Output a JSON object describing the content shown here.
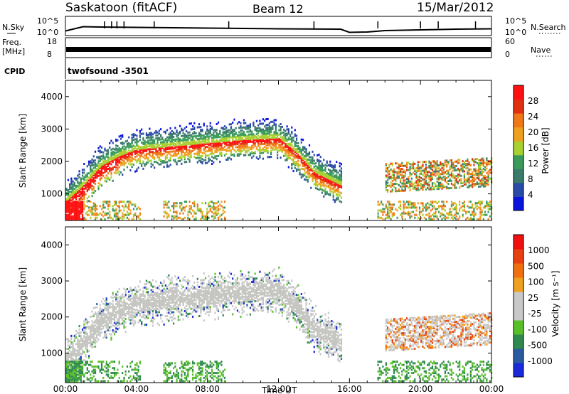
{
  "header": {
    "title": "Saskatoon (fitACF)",
    "beam": "Beam 12",
    "date": "15/Mar/2012"
  },
  "panels": {
    "nsky": {
      "label": "N.Sky",
      "ticks": [
        "10^5",
        "10^0"
      ],
      "right_label": "N.Search",
      "right_ticks": [
        "10^5",
        "10^0"
      ]
    },
    "freq": {
      "label_1": "Freq.",
      "label_2": "[MHz]",
      "ticks": [
        "18",
        "8"
      ],
      "right_label": "Nave",
      "right_ticks": [
        "60",
        "0"
      ]
    },
    "cpid": {
      "label": "CPID",
      "value": "twofsound  -3501"
    },
    "power": {
      "ylabel": "Slant Range [km]",
      "cbar_label": "Power [dB]"
    },
    "velocity": {
      "ylabel": "Slant Range [km]",
      "cbar_label": "Velocity [m s⁻¹]"
    }
  },
  "colors": {
    "power": [
      "#0a14dc",
      "#2a4aa8",
      "#3a7a6a",
      "#3a9a5a",
      "#a8d030",
      "#f0a020",
      "#f07818",
      "#e03010",
      "#ff1010"
    ],
    "velocity": [
      "#1a2ad8",
      "#2a5aa0",
      "#308a50",
      "#5ac02a",
      "#c8c8c8",
      "#c8c8c8",
      "#f0a020",
      "#f07010",
      "#e84010",
      "#f01010"
    ]
  },
  "chart_data": [
    {
      "type": "line",
      "title": "N.Sky / N.Search",
      "xlabel": "Time UT",
      "x_ticks": [
        "00:00",
        "04:00",
        "08:00",
        "12:00",
        "16:00",
        "20:00",
        "00:00"
      ],
      "ylim_log": [
        0,
        5
      ],
      "series": [
        {
          "name": "N.Sky",
          "x_hours": [
            0,
            1,
            2,
            4,
            8,
            12,
            15.5,
            16,
            17,
            18,
            20,
            22,
            24
          ],
          "log_values": [
            0.5,
            1.7,
            1.6,
            1.5,
            1.3,
            1.1,
            1.0,
            0.1,
            0.2,
            0.6,
            0.8,
            1.0,
            1.1
          ]
        }
      ]
    },
    {
      "type": "line",
      "title": "Freq. / Nave",
      "ylim": [
        8,
        18
      ],
      "series": [
        {
          "name": "Freq.",
          "x_hours": [
            0,
            24
          ],
          "values": [
            11,
            11
          ]
        }
      ]
    },
    {
      "type": "heatmap",
      "title": "Power",
      "xlabel": "Time UT",
      "ylabel": "Slant Range [km]",
      "xlim": [
        0,
        24
      ],
      "ylim": [
        180,
        4500
      ],
      "y_ticks": [
        1000,
        2000,
        3000,
        4000
      ],
      "x_ticks": [
        "00:00",
        "04:00",
        "08:00",
        "12:00",
        "16:00",
        "20:00",
        "00:00"
      ],
      "colorbar": {
        "label": "Power [dB]",
        "ticks": [
          4,
          8,
          12,
          16,
          20,
          24,
          28
        ],
        "range": [
          0,
          30
        ]
      },
      "echo_band_km": {
        "x_hours": [
          0,
          1,
          2,
          3,
          4,
          6,
          8,
          10,
          12,
          13,
          14,
          15.5
        ],
        "range_km": [
          800,
          1300,
          1900,
          2200,
          2400,
          2500,
          2600,
          2700,
          2750,
          2300,
          1700,
          1300
        ]
      }
    },
    {
      "type": "heatmap",
      "title": "Velocity",
      "xlabel": "Time UT",
      "ylabel": "Slant Range [km]",
      "xlim": [
        0,
        24
      ],
      "ylim": [
        180,
        4500
      ],
      "y_ticks": [
        1000,
        2000,
        3000,
        4000
      ],
      "x_ticks": [
        "00:00",
        "04:00",
        "08:00",
        "12:00",
        "16:00",
        "20:00",
        "00:00"
      ],
      "colorbar": {
        "label": "Velocity [m s⁻¹]",
        "ticks": [
          "1000",
          "500",
          "100",
          "25",
          "-25",
          "-100",
          "-500",
          "-1000"
        ]
      }
    }
  ]
}
